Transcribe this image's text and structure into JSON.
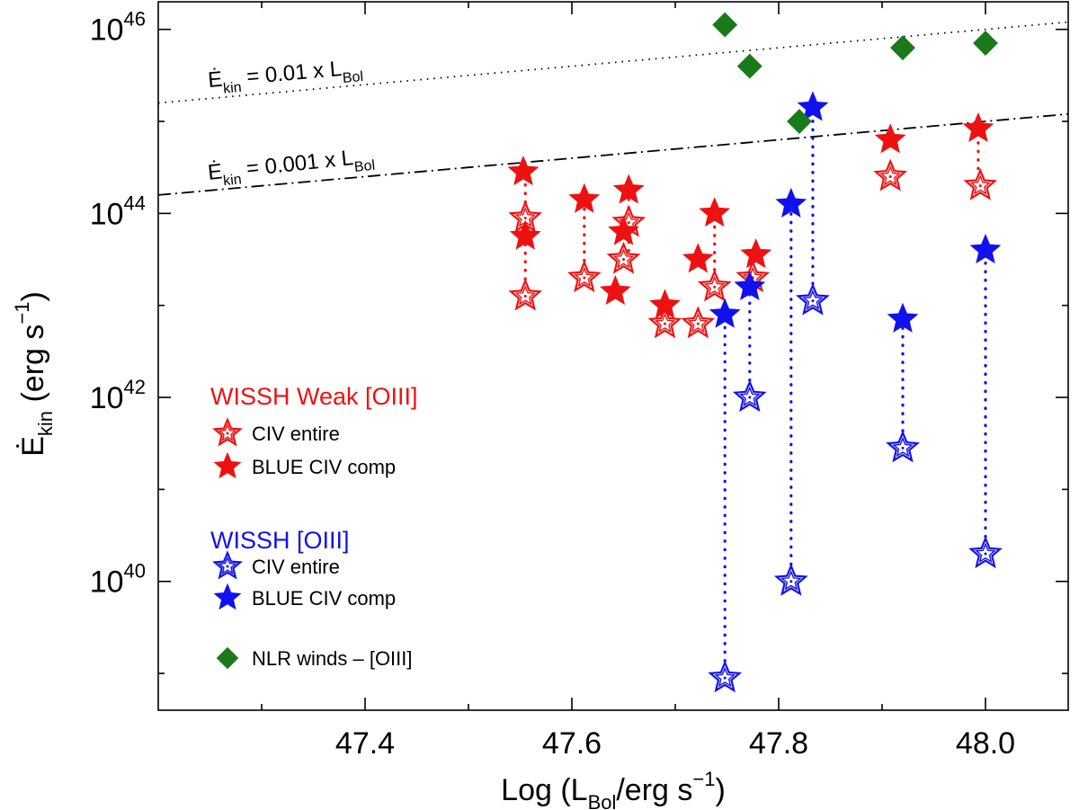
{
  "chart_data": {
    "type": "scatter",
    "xlabel": "Log (L_Bol/erg s^-1)",
    "ylabel": "Ė_kin (erg s^-1)",
    "xlim": [
      47.2,
      48.08
    ],
    "ylim_log10": [
      38.6,
      46.3
    ],
    "y_scale": "log",
    "grid": false,
    "x_ticks": [
      47.4,
      47.6,
      47.8,
      48.0
    ],
    "x_tick_labels": [
      "47.4",
      "47.6",
      "47.8",
      "48.0"
    ],
    "y_ticks_log10": [
      40,
      42,
      44,
      46
    ],
    "y_tick_labels": [
      {
        "base": "10",
        "exp": "40"
      },
      {
        "base": "10",
        "exp": "42"
      },
      {
        "base": "10",
        "exp": "44"
      },
      {
        "base": "10",
        "exp": "46"
      }
    ],
    "reference_lines": [
      {
        "label": {
          "lhs": "Ė",
          "sub": "kin",
          "mid": " = 0.01 x L",
          "sub2": "Bol"
        },
        "fraction": 0.01,
        "style": "dotted"
      },
      {
        "label": {
          "lhs": "Ė",
          "sub": "kin",
          "mid": " = 0.001 x L",
          "sub2": "Bol"
        },
        "fraction": 0.001,
        "style": "dashdot"
      }
    ],
    "legend": {
      "placement": "bottom-left",
      "groups": [
        {
          "title": "WISSH Weak [OIII]",
          "color": "#ee1111",
          "entries": [
            {
              "label": "CIV entire",
              "marker": "open-star"
            },
            {
              "label": "BLUE CIV comp",
              "marker": "filled-star"
            }
          ]
        },
        {
          "title": "WISSH [OIII]",
          "color": "#1111ee",
          "entries": [
            {
              "label": "CIV entire",
              "marker": "open-star"
            },
            {
              "label": "BLUE CIV comp",
              "marker": "filled-star"
            }
          ]
        },
        {
          "title": "",
          "color": "#1a7a1a",
          "entries": [
            {
              "label": "NLR winds – [OIII]",
              "marker": "diamond"
            }
          ]
        }
      ]
    },
    "colors": {
      "weak": "#ee1111",
      "strong": "#1111ee",
      "nlr": "#1a7a1a"
    },
    "series": [
      {
        "name": "WISSH Weak [OIII] – CIV entire",
        "marker": "open-star",
        "color": "#ee1111",
        "points": [
          [
            47.555,
            43.95
          ],
          [
            47.555,
            43.1
          ],
          [
            47.612,
            43.3
          ],
          [
            47.655,
            43.9
          ],
          [
            47.65,
            43.5
          ],
          [
            47.69,
            42.8
          ],
          [
            47.722,
            42.8
          ],
          [
            47.738,
            43.2
          ],
          [
            47.775,
            43.3
          ],
          [
            47.908,
            44.4
          ],
          [
            47.995,
            44.3
          ]
        ]
      },
      {
        "name": "WISSH Weak [OIII] – BLUE CIV comp",
        "marker": "filled-star",
        "color": "#ee1111",
        "points": [
          [
            47.553,
            44.45
          ],
          [
            47.555,
            43.75
          ],
          [
            47.612,
            44.15
          ],
          [
            47.655,
            44.25
          ],
          [
            47.65,
            43.8
          ],
          [
            47.642,
            43.15
          ],
          [
            47.69,
            43.0
          ],
          [
            47.722,
            43.5
          ],
          [
            47.738,
            44.0
          ],
          [
            47.778,
            43.55
          ],
          [
            47.908,
            44.8
          ],
          [
            47.993,
            44.92
          ]
        ]
      },
      {
        "name": "WISSH [OIII] – CIV entire",
        "marker": "open-star",
        "color": "#1111ee",
        "points": [
          [
            47.748,
            38.95
          ],
          [
            47.772,
            42.0
          ],
          [
            47.812,
            40.0
          ],
          [
            47.833,
            43.05
          ],
          [
            47.92,
            41.45
          ],
          [
            48.0,
            40.3
          ]
        ]
      },
      {
        "name": "WISSH [OIII] – BLUE CIV comp",
        "marker": "filled-star",
        "color": "#1111ee",
        "points": [
          [
            47.748,
            42.9
          ],
          [
            47.772,
            43.2
          ],
          [
            47.812,
            44.1
          ],
          [
            47.833,
            45.15
          ],
          [
            47.92,
            42.85
          ],
          [
            48.0,
            43.6
          ]
        ]
      },
      {
        "name": "NLR winds – [OIII]",
        "marker": "diamond",
        "color": "#1a7a1a",
        "points": [
          [
            47.748,
            46.05
          ],
          [
            47.772,
            45.6
          ],
          [
            47.82,
            45.0
          ],
          [
            47.92,
            45.8
          ],
          [
            48.0,
            45.85
          ]
        ]
      }
    ],
    "connectors": [
      {
        "color": "#ee1111",
        "x": 47.555,
        "y": [
          43.1,
          44.45
        ]
      },
      {
        "color": "#ee1111",
        "x": 47.612,
        "y": [
          43.3,
          44.15
        ]
      },
      {
        "color": "#ee1111",
        "x": 47.655,
        "y": [
          43.5,
          44.25
        ]
      },
      {
        "color": "#ee1111",
        "x": 47.738,
        "y": [
          43.2,
          44.0
        ]
      },
      {
        "color": "#ee1111",
        "x": 47.993,
        "y": [
          44.3,
          44.92
        ]
      },
      {
        "color": "#1111ee",
        "x": 47.748,
        "y": [
          38.95,
          42.9
        ]
      },
      {
        "color": "#1111ee",
        "x": 47.772,
        "y": [
          42.0,
          43.2
        ]
      },
      {
        "color": "#1111ee",
        "x": 47.812,
        "y": [
          40.0,
          44.1
        ]
      },
      {
        "color": "#1111ee",
        "x": 47.833,
        "y": [
          43.05,
          45.15
        ]
      },
      {
        "color": "#1111ee",
        "x": 47.92,
        "y": [
          41.45,
          42.85
        ]
      },
      {
        "color": "#1111ee",
        "x": 48.0,
        "y": [
          40.3,
          43.6
        ]
      }
    ]
  }
}
